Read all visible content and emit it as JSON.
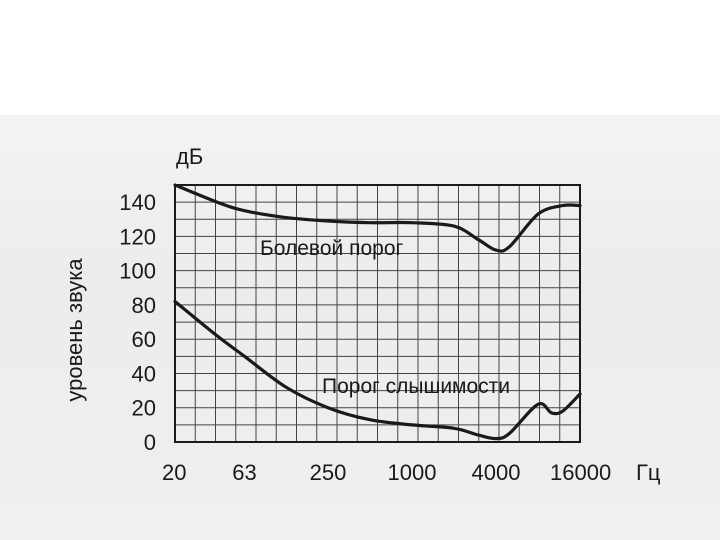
{
  "chart_data": {
    "type": "line",
    "ylabel": "уровень звука",
    "yunit": "дБ",
    "xunit": "Гц",
    "x_tick_labels": [
      "20",
      "63",
      "250",
      "1000",
      "4000",
      "16000"
    ],
    "y_tick_labels": [
      "0",
      "20",
      "40",
      "60",
      "80",
      "100",
      "120",
      "140"
    ],
    "xscale": "log",
    "ylim": [
      0,
      150
    ],
    "xlim": [
      20,
      16000
    ],
    "grid": true,
    "series": [
      {
        "name": "Болевой порог",
        "x": [
          20,
          40,
          63,
          125,
          250,
          500,
          1000,
          2000,
          3000,
          4000,
          5000,
          8000,
          12000,
          16000
        ],
        "y": [
          150,
          140,
          135,
          131,
          129,
          128,
          128,
          126,
          118,
          112,
          114,
          133,
          138,
          138
        ]
      },
      {
        "name": "Порог слышимости",
        "x": [
          20,
          40,
          63,
          125,
          250,
          500,
          1000,
          2000,
          3000,
          4000,
          5000,
          8000,
          10000,
          12000,
          16000
        ],
        "y": [
          82,
          62,
          50,
          32,
          20,
          13,
          10,
          8,
          4,
          2,
          5,
          22,
          17,
          18,
          28
        ]
      }
    ]
  }
}
